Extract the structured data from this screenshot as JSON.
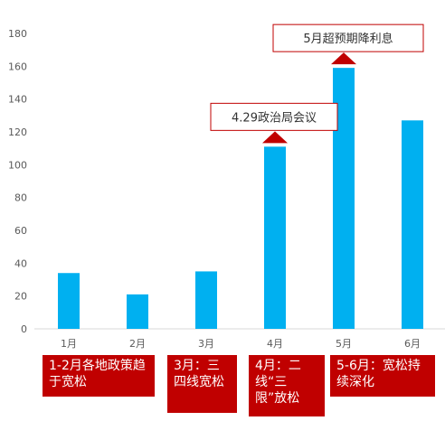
{
  "chart_data": {
    "type": "bar",
    "categories": [
      "1月",
      "2月",
      "3月",
      "4月",
      "5月",
      "6月"
    ],
    "values": [
      34,
      21,
      35,
      111,
      159,
      127
    ],
    "ylim": [
      0,
      180
    ],
    "yticks": [
      0,
      20,
      40,
      60,
      80,
      100,
      120,
      140,
      160,
      180
    ],
    "bar_color": "#00b0f0",
    "grid": false,
    "callouts": [
      {
        "category": "4月",
        "text": "4.29政治局会议"
      },
      {
        "category": "5月",
        "text": "5月超预期降利息"
      }
    ]
  },
  "policy_notes": [
    {
      "text": "1-2月各地政策趋于宽松"
    },
    {
      "text": "3月：三四线宽松"
    },
    {
      "text": "4月：二线“三限”放松"
    },
    {
      "text": "5-6月：宽松持续深化"
    }
  ],
  "colors": {
    "callout_arrow": "#c00000",
    "note_bg": "#c00000",
    "callout_border": "#c00000"
  }
}
